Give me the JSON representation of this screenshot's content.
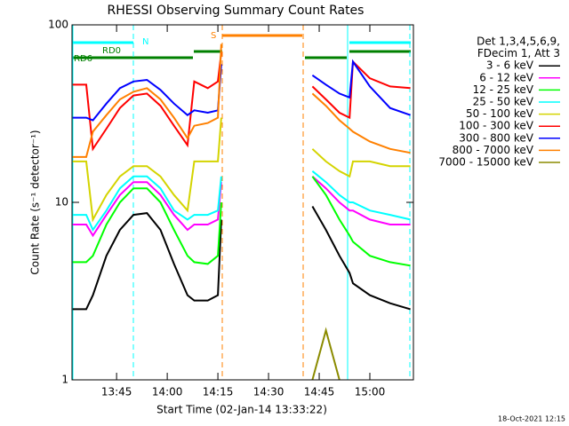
{
  "chart_data": {
    "type": "line",
    "title": "RHESSI Observing Summary Count Rates",
    "x_label": "Start Time (02-Jan-14 13:33:22)",
    "y_label": "Count Rate (s⁻¹ detector⁻¹)",
    "log_y": true,
    "legend_title": [
      "Det 1,3,4,5,6,9,",
      "FDecim 1, Att 3"
    ],
    "annotations": [
      "N",
      "RD0",
      "RD6",
      "S"
    ],
    "footer": "18-Oct-2021 12:15",
    "xlim": [
      811.8,
      912.9
    ],
    "xticks": [
      {
        "value": 825,
        "label": "13:45"
      },
      {
        "value": 840,
        "label": "14:00"
      },
      {
        "value": 855,
        "label": "14:15"
      },
      {
        "value": 870,
        "label": "14:30"
      },
      {
        "value": 885,
        "label": "14:45"
      },
      {
        "value": 900,
        "label": "15:00"
      }
    ],
    "ylim": [
      1,
      100
    ],
    "yticks": [
      1,
      10,
      100
    ],
    "x": [
      812,
      816,
      818,
      822,
      826,
      830,
      834,
      838,
      842,
      846,
      848,
      852,
      855,
      856,
      870,
      883,
      887,
      891,
      894,
      895,
      900,
      906,
      912
    ],
    "series": [
      {
        "name": "3 - 6 keV",
        "color": "#000000",
        "values": [
          2.5,
          2.5,
          3,
          5,
          7,
          8.5,
          8.7,
          7,
          4.5,
          3,
          2.8,
          2.8,
          3,
          8,
          null,
          9.5,
          7,
          5,
          4,
          3.5,
          3,
          2.7,
          2.5
        ]
      },
      {
        "name": "6 - 12 keV",
        "color": "#ff00ff",
        "values": [
          7.5,
          7.5,
          6.5,
          8.5,
          11,
          13,
          13,
          11,
          8.5,
          7,
          7.5,
          7.5,
          8,
          13,
          null,
          14,
          12,
          10,
          9,
          9,
          8,
          7.5,
          7.5
        ]
      },
      {
        "name": "12 - 25 keV",
        "color": "#00ff00",
        "values": [
          4.6,
          4.6,
          5,
          7.5,
          10,
          12,
          12,
          10,
          7,
          5,
          4.6,
          4.5,
          5,
          10,
          null,
          14,
          11,
          8,
          6.5,
          6,
          5,
          4.6,
          4.4
        ]
      },
      {
        "name": "25 - 50 keV",
        "color": "#00ffff",
        "values": [
          8.5,
          8.5,
          7,
          9,
          12,
          14,
          14,
          12,
          9,
          8,
          8.5,
          8.5,
          9,
          14,
          null,
          15,
          13,
          11,
          10,
          10,
          9,
          8.5,
          8
        ]
      },
      {
        "name": "50 - 100 keV",
        "color": "#d4d400",
        "values": [
          17,
          17,
          8,
          11,
          14,
          16,
          16,
          14,
          11,
          9,
          17,
          17,
          17,
          30,
          null,
          20,
          17,
          15,
          14,
          17,
          17,
          16,
          16
        ]
      },
      {
        "name": "100 - 300 keV",
        "color": "#ff0000",
        "values": [
          46,
          46,
          20,
          26,
          34,
          40,
          41,
          35,
          27,
          21,
          48,
          44,
          48,
          70,
          null,
          45,
          38,
          32,
          30,
          62,
          50,
          45,
          44
        ]
      },
      {
        "name": "300 - 800 keV",
        "color": "#0000ff",
        "values": [
          30,
          30,
          29,
          36,
          44,
          48,
          49,
          43,
          36,
          31,
          33,
          32,
          33,
          60,
          null,
          52,
          46,
          41,
          39,
          62,
          45,
          34,
          31
        ]
      },
      {
        "name": "800 - 7000 keV",
        "color": "#ff8000",
        "values": [
          18,
          18,
          25,
          31,
          38,
          42,
          44,
          38,
          30,
          23,
          27,
          28,
          30,
          78,
          null,
          41,
          35,
          29,
          26,
          25,
          22,
          20,
          19
        ]
      },
      {
        "name": "7000 - 15000 keV",
        "color": "#8b8b00",
        "values": [
          null,
          null,
          null,
          null,
          null,
          null,
          null,
          null,
          null,
          null,
          null,
          null,
          null,
          null,
          null,
          1,
          1.9,
          1,
          null,
          null,
          null,
          null,
          null
        ]
      }
    ]
  }
}
